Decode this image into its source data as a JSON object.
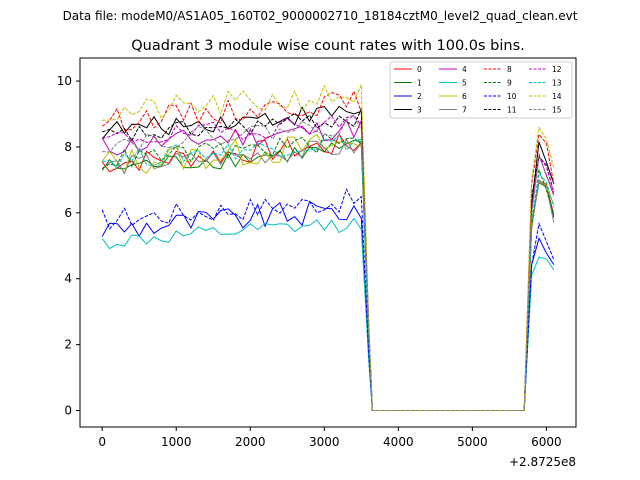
{
  "figure": {
    "suptitle": "Data file: modeM0/AS1A05_160T02_9000002710_18184cztM0_level2_quad_clean.evt",
    "title": "Quadrant 3 module wise count rates with 100.0s bins.",
    "x_offset_label": "+2.8725e8"
  },
  "chart_data": {
    "type": "line",
    "title": "Quadrant 3 module wise count rates with 100.0s bins.",
    "xlabel": "",
    "ylabel": "",
    "x_offset": 287250000,
    "xlim": [
      -300,
      6400
    ],
    "ylim": [
      -0.5,
      10.7
    ],
    "xticks": [
      0,
      1000,
      2000,
      3000,
      4000,
      5000,
      6000
    ],
    "yticks": [
      0,
      2,
      4,
      6,
      8,
      10
    ],
    "grid": false,
    "legend_position": "top-right",
    "legend_columns": 4,
    "gap": {
      "from": 3650,
      "to": 5700,
      "value": 0
    },
    "active_segments": [
      [
        0,
        3500
      ],
      [
        5750,
        6100
      ]
    ],
    "series": [
      {
        "name": "0",
        "color": "#ff0000",
        "dash": "solid",
        "level": 7.5,
        "amp": 0.35
      },
      {
        "name": "1",
        "color": "#008000",
        "dash": "solid",
        "level": 7.35,
        "amp": 0.3
      },
      {
        "name": "2",
        "color": "#0000ff",
        "dash": "solid",
        "level": 5.5,
        "amp": 0.4
      },
      {
        "name": "3",
        "color": "#000000",
        "dash": "solid",
        "level": 8.5,
        "amp": 0.3
      },
      {
        "name": "4",
        "color": "#c000c0",
        "dash": "solid",
        "level": 8.0,
        "amp": 0.35
      },
      {
        "name": "5",
        "color": "#00bfbf",
        "dash": "solid",
        "level": 5.1,
        "amp": 0.25
      },
      {
        "name": "6",
        "color": "#bfbf00",
        "dash": "solid",
        "level": 7.5,
        "amp": 0.45
      },
      {
        "name": "7",
        "color": "#808080",
        "dash": "solid",
        "level": 7.4,
        "amp": 0.3
      },
      {
        "name": "8",
        "color": "#ff0000",
        "dash": "dashed",
        "level": 8.8,
        "amp": 0.35
      },
      {
        "name": "9",
        "color": "#008000",
        "dash": "dashed",
        "level": 7.6,
        "amp": 0.3
      },
      {
        "name": "10",
        "color": "#0000ff",
        "dash": "dashed",
        "level": 5.8,
        "amp": 0.35
      },
      {
        "name": "11",
        "color": "#000000",
        "dash": "dashed",
        "level": 8.3,
        "amp": 0.3
      },
      {
        "name": "12",
        "color": "#c000c0",
        "dash": "dashed",
        "level": 8.2,
        "amp": 0.3
      },
      {
        "name": "13",
        "color": "#00bfbf",
        "dash": "dashed",
        "level": 7.6,
        "amp": 0.3
      },
      {
        "name": "14",
        "color": "#bfbf00",
        "dash": "dashed",
        "level": 9.0,
        "amp": 0.4
      },
      {
        "name": "15",
        "color": "#808080",
        "dash": "dashed",
        "level": 8.1,
        "amp": 0.3
      }
    ]
  }
}
